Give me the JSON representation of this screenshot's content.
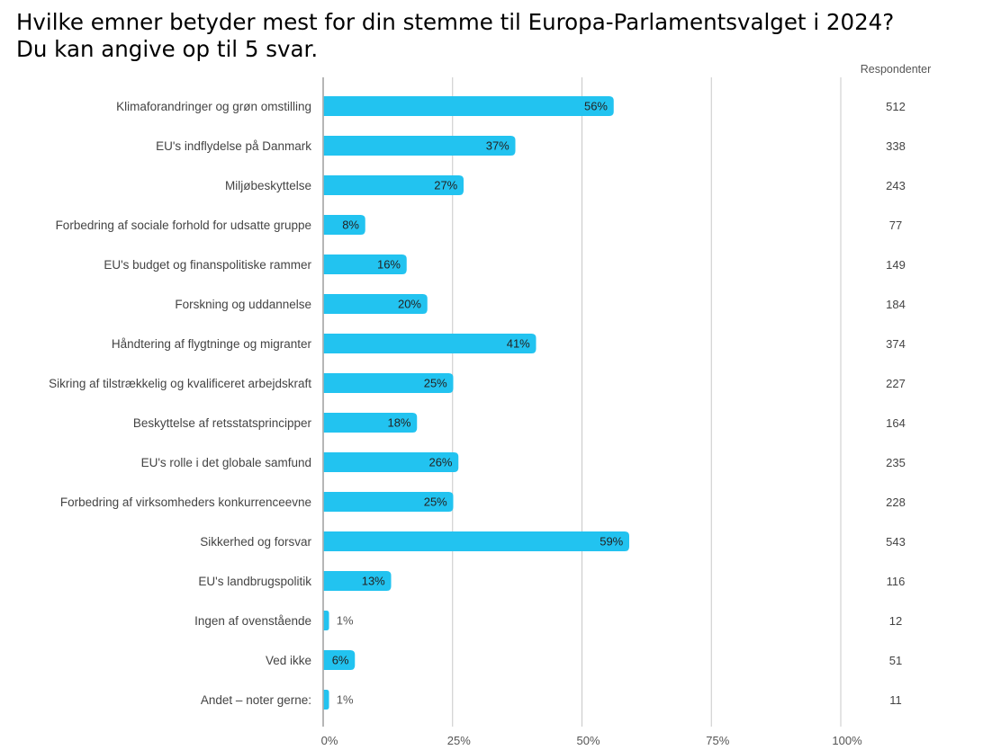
{
  "title": {
    "line1": "Hvilke emner betyder mest for din stemme til Europa-Parlamentsvalget i 2024?",
    "line2": "Du kan angive op til 5 svar."
  },
  "colors": {
    "bar": "#22c3f0",
    "grid": "#c8c8c8",
    "axis": "#9e9e9e"
  },
  "chart_data": {
    "type": "bar",
    "orientation": "horizontal",
    "title": "Hvilke emner betyder mest for din stemme til Europa-Parlamentsvalget i 2024? Du kan angive op til 5 svar.",
    "xlabel": "",
    "ylabel": "",
    "xlim": [
      0,
      100
    ],
    "grid": true,
    "ticks": [
      "0%",
      "25%",
      "50%",
      "75%",
      "100%"
    ],
    "tick_values": [
      0,
      25,
      50,
      75,
      100
    ],
    "respondents_header": "Respondenter",
    "categories": [
      "Klimaforandringer og grøn omstilling",
      "EU's indflydelse på Danmark",
      "Miljøbeskyttelse",
      "Forbedring af sociale forhold for udsatte gruppe",
      "EU's budget og finanspolitiske rammer",
      "Forskning og uddannelse",
      "Håndtering af flygtninge og migranter",
      "Sikring af tilstrækkelig og kvalificeret arbejdskraft",
      "Beskyttelse af retsstatsprincipper",
      "EU's rolle i det globale samfund",
      "Forbedring af virksomheders konkurrenceevne",
      "Sikkerhed og forsvar",
      "EU's landbrugspolitik",
      "Ingen af ovenstående",
      "Ved ikke",
      "Andet – noter gerne:"
    ],
    "values": [
      56,
      37,
      27,
      8,
      16,
      20,
      41,
      25,
      18,
      26,
      25,
      59,
      13,
      1,
      6,
      1
    ],
    "value_labels": [
      "56%",
      "37%",
      "27%",
      "8%",
      "16%",
      "20%",
      "41%",
      "25%",
      "18%",
      "26%",
      "25%",
      "59%",
      "13%",
      "1%",
      "6%",
      "1%"
    ],
    "respondents": [
      "512",
      "338",
      "243",
      "77",
      "149",
      "184",
      "374",
      "227",
      "164",
      "235",
      "228",
      "543",
      "116",
      "12",
      "51",
      "11"
    ]
  }
}
